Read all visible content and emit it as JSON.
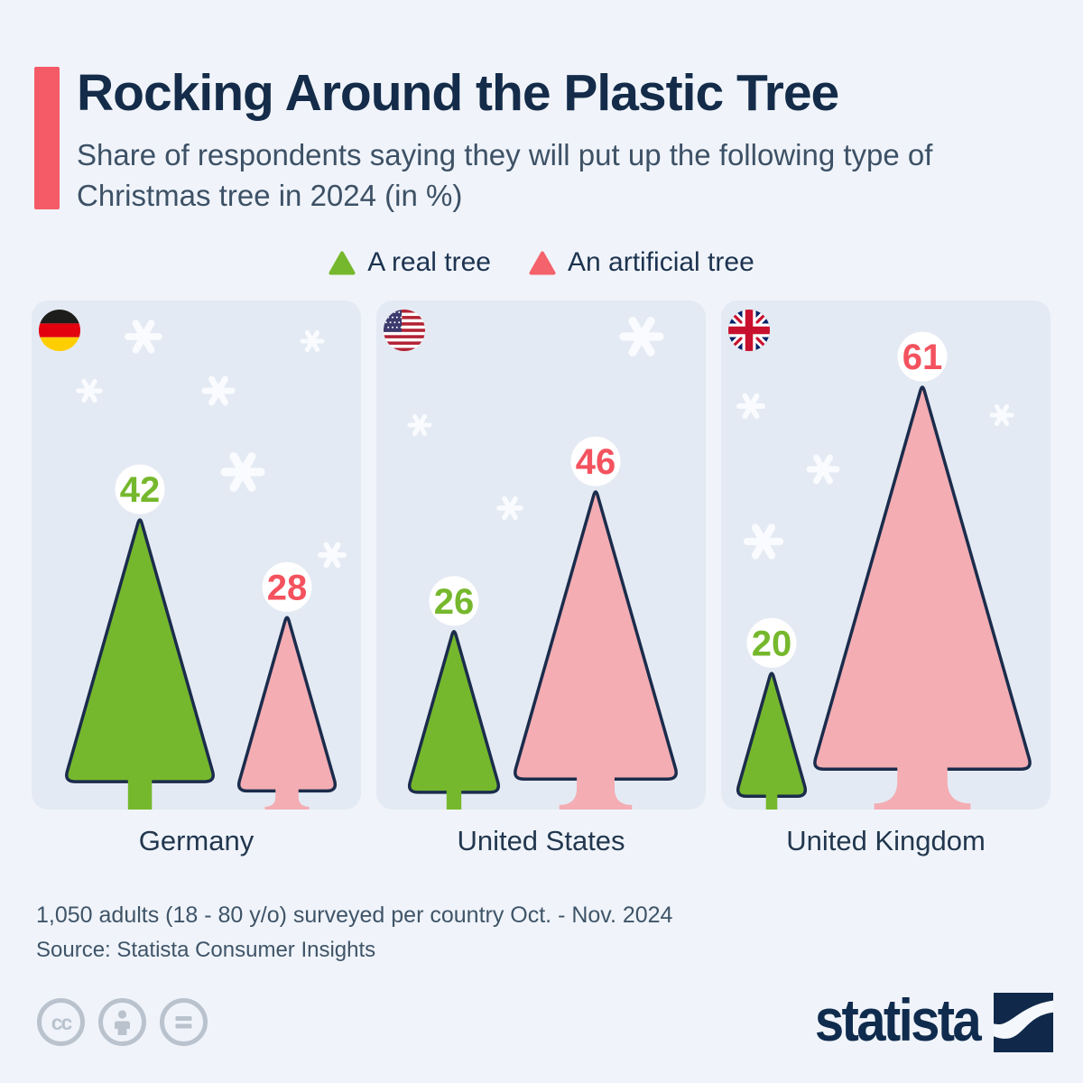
{
  "header": {
    "title": "Rocking Around the Plastic Tree",
    "subtitle": "Share of respondents saying they will put up the following type of Christmas tree in 2024 (in %)",
    "accent_color": "#f45b67",
    "title_color": "#142c49"
  },
  "legend": {
    "items": [
      {
        "label": "A real tree",
        "color": "#76b82d"
      },
      {
        "label": "An artificial tree",
        "color": "#f4626b"
      }
    ]
  },
  "chart_data": {
    "type": "bar",
    "title": "Rocking Around the Plastic Tree",
    "subtitle": "Share of respondents saying they will put up the following type of Christmas tree in 2024 (in %)",
    "unit": "%",
    "categories": [
      "Germany",
      "United States",
      "United Kingdom"
    ],
    "series": [
      {
        "name": "A real tree",
        "values": [
          42,
          26,
          20
        ],
        "color": "#76b82d",
        "label_color": "#76b82d"
      },
      {
        "name": "An artificial tree",
        "values": [
          28,
          46,
          61
        ],
        "color": "#f3adb3",
        "label_color": "#f4525e"
      }
    ],
    "flags": [
      "germany",
      "united-states",
      "united-kingdom"
    ],
    "value_range": [
      0,
      100
    ],
    "legend_position": "top",
    "outline_color": "#1b2c4c",
    "panel_background": "#e4eaf3"
  },
  "footer": {
    "note": "1,050 adults (18 - 80 y/o) surveyed per country Oct. - Nov. 2024",
    "source": "Source: Statista Consumer Insights",
    "license_icons": [
      "cc-icon",
      "attribution-icon",
      "no-derivatives-icon"
    ],
    "brand": "statista"
  }
}
